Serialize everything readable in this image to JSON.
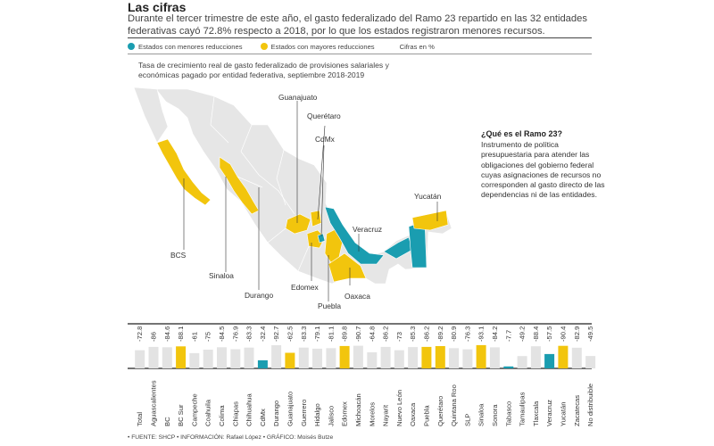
{
  "header": {
    "title": "Las cifras",
    "subtitle": "Durante el tercer trimestre de este año, el gasto federalizado del Ramo 23 repartido en las 32 entidades federativas cayó 72.8% respecto a 2018, por lo que los estados registraron menores recursos."
  },
  "legend": {
    "low_label": "Estados con menores reducciones",
    "high_label": "Estados con mayores reducciones",
    "units": "Cifras en %"
  },
  "colors": {
    "low": "#1a9db0",
    "high": "#f2c50d",
    "neutral": "#e3e3e3",
    "map_base": "#e6e6e6"
  },
  "map": {
    "caption": "Tasa de crecimiento real de gasto federalizado de provisiones salariales y económicas pagado por entidad federativa, septiembre 2018-2019",
    "labels": {
      "guanajuato": "Guanajuato",
      "queretaro": "Querétaro",
      "cdmx": "CdMx",
      "yucatan": "Yucatán",
      "veracruz": "Veracruz",
      "bcs": "BCS",
      "sinaloa": "Sinaloa",
      "durango": "Durango",
      "edomex": "Edomex",
      "puebla": "Puebla",
      "oaxaca": "Oaxaca"
    }
  },
  "sidebar": {
    "title": "¿Qué es el Ramo 23?",
    "text": "Instrumento de política presupuestaria para atender las obligaciones del gobierno federal cuyas asignaciones de recursos no corresponden al gasto directo de las dependencias ni de las entidades."
  },
  "chart_data": {
    "type": "bar",
    "categories": [
      "Total",
      "Aguascalientes",
      "BC",
      "BC Sur",
      "Campeche",
      "Coahuila",
      "Colima",
      "Chiapas",
      "Chihuahua",
      "CdMx",
      "Durango",
      "Guanajuato",
      "Guerrero",
      "Hidalgo",
      "Jalisco",
      "Edomex",
      "Michoacán",
      "Morelos",
      "Nayarit",
      "Nuevo León",
      "Oaxaca",
      "Puebla",
      "Querétaro",
      "Quintana Roo",
      "SLP",
      "Sinaloa",
      "Sonora",
      "Tabasco",
      "Tamaulipas",
      "Tlaxcala",
      "Veracruz",
      "Yucatán",
      "Zacatecas",
      "No distribuible"
    ],
    "values": [
      -72.8,
      -86,
      -84.6,
      -88.1,
      -61,
      -75,
      -84.5,
      -76.9,
      -83.3,
      -32.4,
      -92.7,
      -62.5,
      -83.3,
      -79.1,
      -81.1,
      -89.8,
      -90.7,
      -64.8,
      -86.2,
      -73,
      -85.3,
      -86.2,
      -89.2,
      -80.9,
      -76.3,
      -93.1,
      -84.2,
      -7.7,
      -49.2,
      -88.4,
      -57.5,
      -90.4,
      -82.9,
      -49.5
    ],
    "value_labels": [
      "-72.8",
      "-86",
      "-84.6",
      "-88.1",
      "-61",
      "-75",
      "-84.5",
      "-76.9",
      "-83.3",
      "-32.4",
      "-92.7",
      "-62.5",
      "-83.3",
      "-79.1",
      "-81.1",
      "-89.8",
      "-90.7",
      "-64.8",
      "-86.2",
      "-73",
      "-85.3",
      "-86.2",
      "-89.2",
      "-80.9",
      "-76.3",
      "-93.1",
      "-84.2",
      "-7.7",
      "-49.2",
      "-88.4",
      "-57.5",
      "-90.4",
      "-82.9",
      "-49.5"
    ],
    "groups": [
      "neutral",
      "neutral",
      "neutral",
      "high",
      "neutral",
      "neutral",
      "neutral",
      "neutral",
      "neutral",
      "low",
      "neutral",
      "high",
      "neutral",
      "neutral",
      "neutral",
      "high",
      "neutral",
      "neutral",
      "neutral",
      "neutral",
      "neutral",
      "high",
      "high",
      "neutral",
      "neutral",
      "high",
      "neutral",
      "low",
      "neutral",
      "neutral",
      "low",
      "high",
      "neutral",
      "neutral"
    ],
    "ylim": [
      -100,
      0
    ],
    "title": "",
    "xlabel": "",
    "ylabel": ""
  },
  "footer": "• FUENTE: SHCP • INFORMACIÓN: Rafael López • GRÁFICO: Moisés Butze"
}
